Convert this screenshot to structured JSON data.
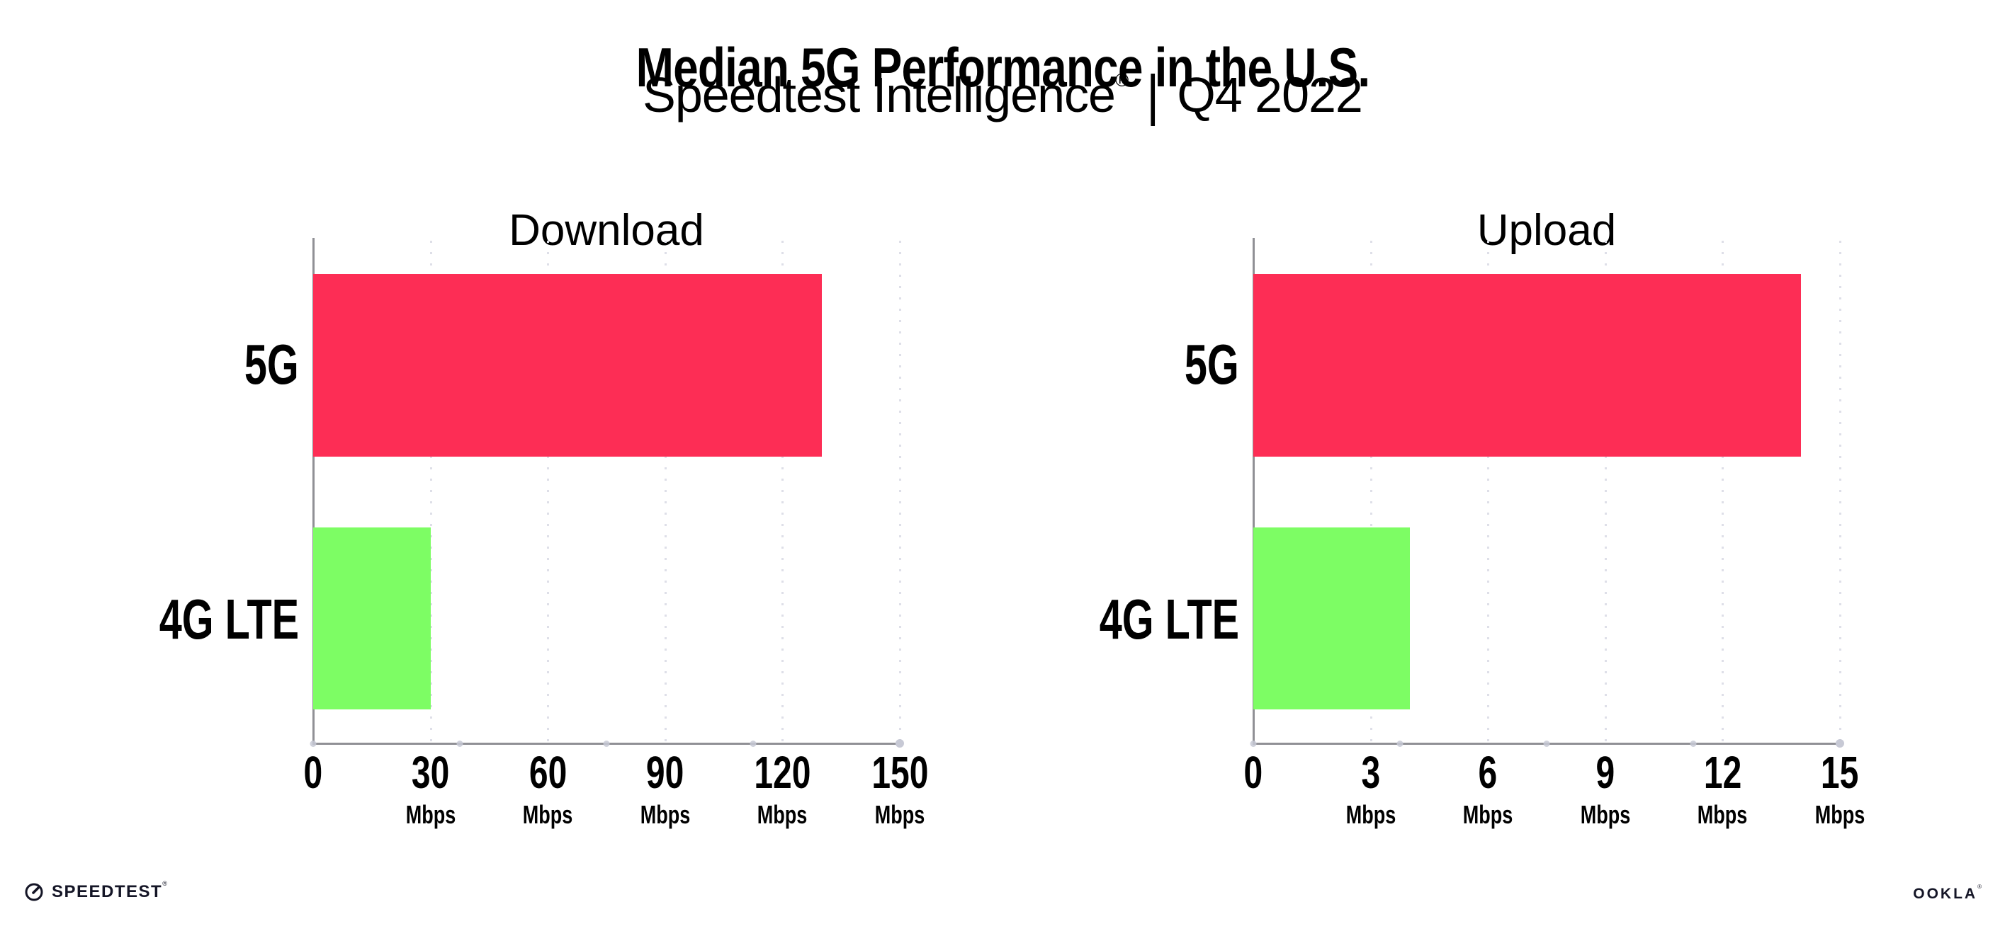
{
  "page": {
    "background": "#FFFFFF"
  },
  "header": {
    "title": "Median 5G Performance in the U.S.",
    "subtitle": {
      "brand": "Speedtest Intelligence",
      "registered": "®",
      "separator": "|",
      "period": "Q4 2022"
    }
  },
  "chart_data": [
    {
      "type": "bar",
      "orientation": "horizontal",
      "title": "Download",
      "categories": [
        "5G",
        "4G LTE"
      ],
      "values": [
        130,
        30
      ],
      "unit": "Mbps",
      "xlim": [
        0,
        150
      ],
      "xticks": [
        0,
        30,
        60,
        90,
        120,
        150
      ],
      "xtick_unit": "Mbps",
      "unit_shown_on_zero_tick": false,
      "bar_colors": [
        "#FD2D55",
        "#7DFD64"
      ],
      "grid": "dotted-vertical",
      "legend": "none"
    },
    {
      "type": "bar",
      "orientation": "horizontal",
      "title": "Upload",
      "categories": [
        "5G",
        "4G LTE"
      ],
      "values": [
        14,
        4
      ],
      "unit": "Mbps",
      "xlim": [
        0,
        15
      ],
      "xticks": [
        0,
        3,
        6,
        9,
        12,
        15
      ],
      "xtick_unit": "Mbps",
      "unit_shown_on_zero_tick": false,
      "bar_colors": [
        "#FD2D55",
        "#7DFD64"
      ],
      "grid": "dotted-vertical",
      "legend": "none"
    }
  ],
  "footer": {
    "speedtest": {
      "label": "SPEEDTEST",
      "registered": "®"
    },
    "ookla": {
      "label": "OOKLA",
      "registered": "®"
    }
  },
  "colors": {
    "bar_5g": "#FD2D55",
    "bar_4g_lte": "#7DFD64",
    "axis_line": "#909095",
    "gridline": "#DEDFE8",
    "axis_dot": "#C7C9D5",
    "text": "#000000",
    "logo_text": "#141526"
  }
}
